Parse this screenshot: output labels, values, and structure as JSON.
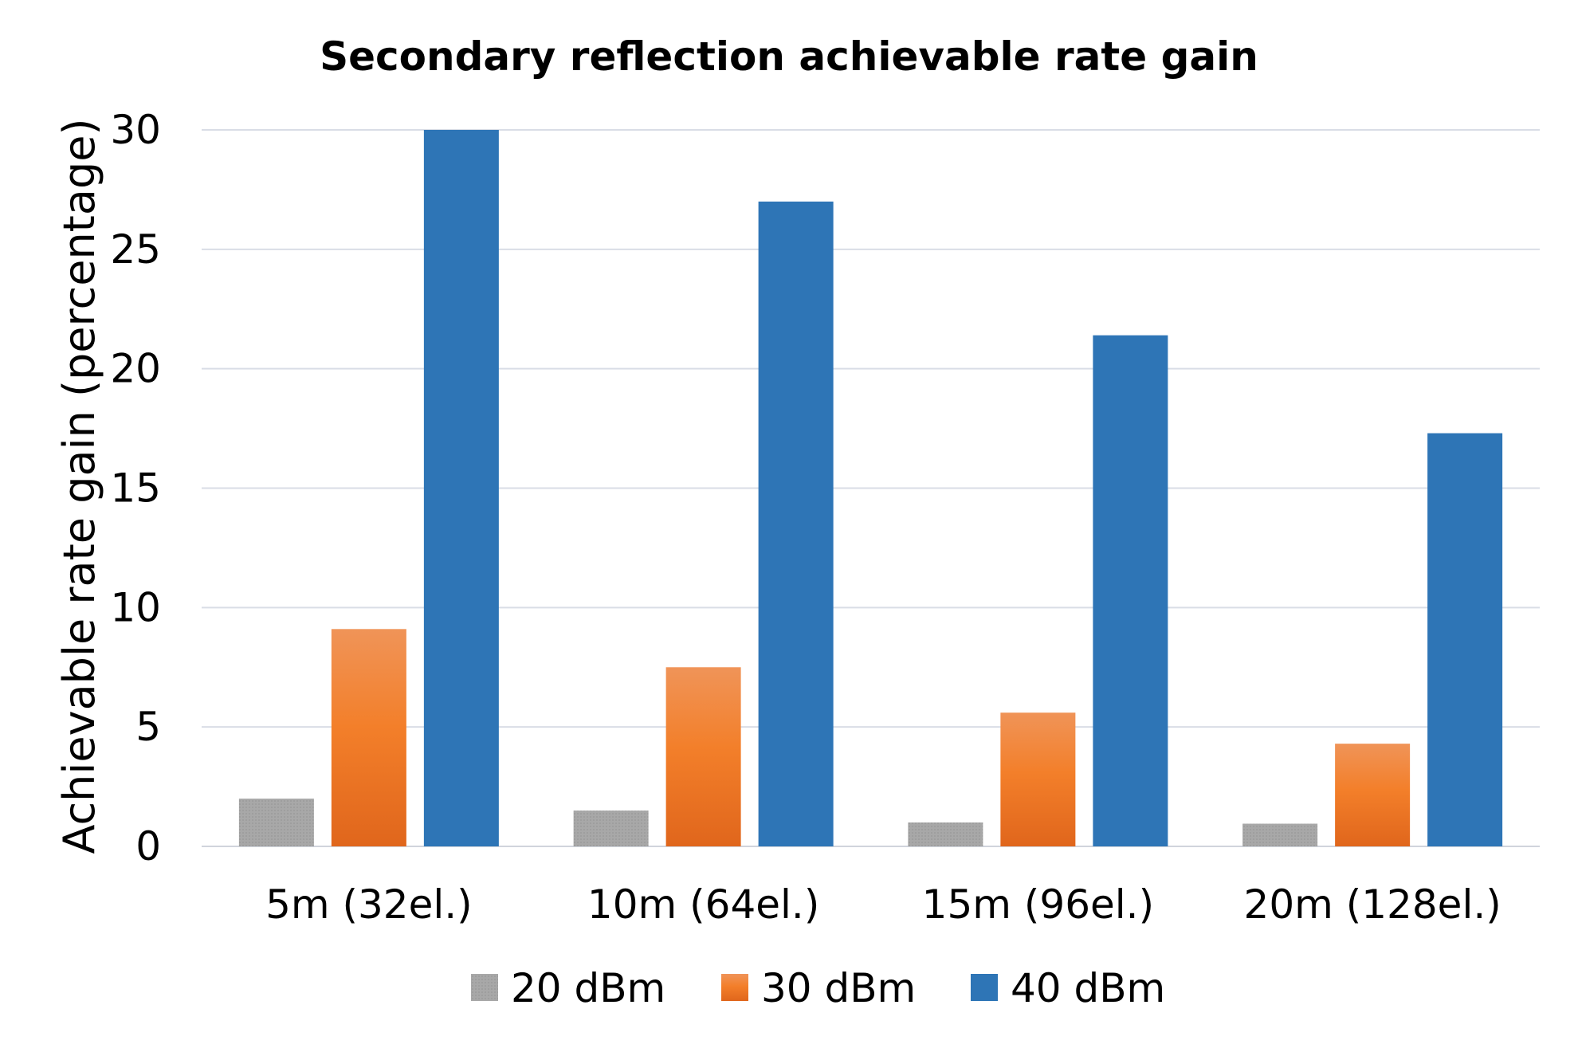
{
  "chart_data": {
    "type": "bar",
    "title": "Secondary reflection achievable rate gain",
    "xlabel": "",
    "ylabel": "Achievable rate gain (percentage)",
    "ylim": [
      0,
      30
    ],
    "yticks": [
      0,
      5,
      10,
      15,
      20,
      25,
      30
    ],
    "grid": true,
    "legend_position": "bottom",
    "categories": [
      "5m (32el.)",
      "10m (64el.)",
      "15m (96el.)",
      "20m (128el.)"
    ],
    "series": [
      {
        "name": "20 dBm",
        "color": "#a5a5a5",
        "values": [
          2.0,
          1.5,
          1.0,
          0.95
        ]
      },
      {
        "name": "30 dBm",
        "color": "#ed7d31",
        "values": [
          9.1,
          7.5,
          5.6,
          4.3
        ]
      },
      {
        "name": "40 dBm",
        "color": "#2e75b6",
        "values": [
          30.0,
          27.0,
          21.4,
          17.3
        ]
      }
    ]
  }
}
